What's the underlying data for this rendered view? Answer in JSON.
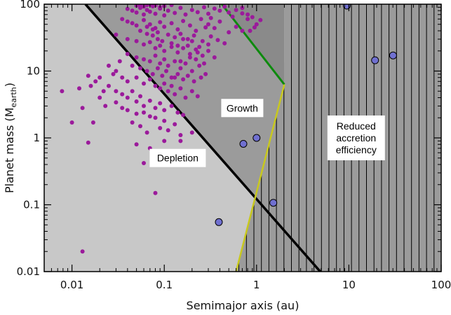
{
  "chart_data": {
    "type": "scatter",
    "title": "",
    "xlabel": "Semimajor axis (au)",
    "ylabel_main": "Planet mass (M",
    "ylabel_sub": "earth",
    "ylabel_close": ")",
    "xscale": "log",
    "yscale": "log",
    "xlim": [
      0.005,
      100
    ],
    "ylim": [
      0.01,
      100
    ],
    "xticks": [
      {
        "value": 0.01,
        "label": "0.01"
      },
      {
        "value": 0.1,
        "label": "0.1"
      },
      {
        "value": 1,
        "label": "1"
      },
      {
        "value": 10,
        "label": "10"
      },
      {
        "value": 100,
        "label": "100"
      }
    ],
    "yticks": [
      {
        "value": 0.01,
        "label": "0.01"
      },
      {
        "value": 0.1,
        "label": "0.1"
      },
      {
        "value": 1,
        "label": "1"
      },
      {
        "value": 10,
        "label": "10"
      },
      {
        "value": 100,
        "label": "100"
      }
    ],
    "colors": {
      "depletion_region": "#c8c8c8",
      "growth_region": "#9b9b9b",
      "top_region": "#8a8a8a",
      "hatch": "#000000",
      "black_line": "#000000",
      "green_line": "#0d8a0d",
      "yellow_line": "#c8c81e",
      "exoplanet": "#9b1a9b",
      "solar_system": "#7070d0"
    },
    "lines": {
      "depletion_boundary": [
        [
          0.014,
          100
        ],
        [
          4.9,
          0.01
        ]
      ],
      "green_limit": [
        [
          0.42,
          100
        ],
        [
          2.0,
          6.3
        ]
      ],
      "yellow_limit": [
        [
          0.6,
          0.01
        ],
        [
          2.0,
          6.3
        ]
      ]
    },
    "regions": [
      {
        "name": "Depletion",
        "label": "Depletion",
        "at": [
          0.14,
          0.5
        ]
      },
      {
        "name": "Growth",
        "label": "Growth",
        "at": [
          0.7,
          2.8
        ]
      },
      {
        "name": "Reduced accretion efficiency",
        "label_lines": [
          "Reduced",
          "accretion",
          "efficiency"
        ],
        "at": [
          12,
          1.0
        ]
      }
    ],
    "series": [
      {
        "kind": "exoplanets",
        "points": [
          [
            0.05,
            95
          ],
          [
            0.055,
            98
          ],
          [
            0.06,
            92
          ],
          [
            0.065,
            97
          ],
          [
            0.07,
            99
          ],
          [
            0.075,
            93
          ],
          [
            0.08,
            96
          ],
          [
            0.09,
            90
          ],
          [
            0.1,
            94
          ],
          [
            0.12,
            97
          ],
          [
            0.04,
            85
          ],
          [
            0.045,
            80
          ],
          [
            0.05,
            75
          ],
          [
            0.055,
            88
          ],
          [
            0.06,
            70
          ],
          [
            0.065,
            82
          ],
          [
            0.07,
            77
          ],
          [
            0.08,
            72
          ],
          [
            0.09,
            86
          ],
          [
            0.1,
            68
          ],
          [
            0.11,
            80
          ],
          [
            0.13,
            74
          ],
          [
            0.15,
            88
          ],
          [
            0.17,
            70
          ],
          [
            0.2,
            82
          ],
          [
            0.23,
            76
          ],
          [
            0.27,
            90
          ],
          [
            0.3,
            72
          ],
          [
            0.35,
            86
          ],
          [
            0.4,
            80
          ],
          [
            0.45,
            92
          ],
          [
            0.5,
            75
          ],
          [
            0.6,
            82
          ],
          [
            0.7,
            88
          ],
          [
            0.8,
            70
          ],
          [
            0.9,
            64
          ],
          [
            1.0,
            50
          ],
          [
            1.1,
            58
          ],
          [
            0.85,
            40
          ],
          [
            0.95,
            45
          ],
          [
            0.035,
            60
          ],
          [
            0.04,
            55
          ],
          [
            0.045,
            52
          ],
          [
            0.05,
            48
          ],
          [
            0.06,
            58
          ],
          [
            0.07,
            50
          ],
          [
            0.08,
            44
          ],
          [
            0.09,
            54
          ],
          [
            0.1,
            46
          ],
          [
            0.12,
            52
          ],
          [
            0.14,
            42
          ],
          [
            0.16,
            56
          ],
          [
            0.19,
            48
          ],
          [
            0.22,
            40
          ],
          [
            0.25,
            60
          ],
          [
            0.3,
            50
          ],
          [
            0.35,
            44
          ],
          [
            0.4,
            55
          ],
          [
            0.5,
            38
          ],
          [
            0.6,
            46
          ],
          [
            0.7,
            40
          ],
          [
            0.055,
            40
          ],
          [
            0.065,
            36
          ],
          [
            0.075,
            34
          ],
          [
            0.085,
            38
          ],
          [
            0.11,
            35
          ],
          [
            0.13,
            32
          ],
          [
            0.15,
            36
          ],
          [
            0.18,
            30
          ],
          [
            0.21,
            34
          ],
          [
            0.26,
            28
          ],
          [
            0.32,
            33
          ],
          [
            0.38,
            29
          ],
          [
            0.45,
            26
          ],
          [
            0.03,
            35
          ],
          [
            0.04,
            30
          ],
          [
            0.05,
            28
          ],
          [
            0.06,
            25
          ],
          [
            0.07,
            27
          ],
          [
            0.08,
            22
          ],
          [
            0.09,
            24
          ],
          [
            0.1,
            20
          ],
          [
            0.12,
            23
          ],
          [
            0.14,
            19
          ],
          [
            0.16,
            22
          ],
          [
            0.19,
            18
          ],
          [
            0.22,
            21
          ],
          [
            0.26,
            17
          ],
          [
            0.3,
            20
          ],
          [
            0.35,
            16
          ],
          [
            0.04,
            18
          ],
          [
            0.05,
            16
          ],
          [
            0.06,
            15
          ],
          [
            0.07,
            14
          ],
          [
            0.08,
            17
          ],
          [
            0.09,
            13
          ],
          [
            0.1,
            15
          ],
          [
            0.11,
            12
          ],
          [
            0.13,
            14
          ],
          [
            0.15,
            11
          ],
          [
            0.17,
            13
          ],
          [
            0.2,
            10
          ],
          [
            0.24,
            12
          ],
          [
            0.28,
            9
          ],
          [
            0.033,
            14
          ],
          [
            0.045,
            12
          ],
          [
            0.055,
            11
          ],
          [
            0.065,
            10
          ],
          [
            0.075,
            9
          ],
          [
            0.085,
            11
          ],
          [
            0.095,
            8.5
          ],
          [
            0.105,
            10
          ],
          [
            0.12,
            8
          ],
          [
            0.14,
            9
          ],
          [
            0.16,
            7.5
          ],
          [
            0.18,
            8.5
          ],
          [
            0.21,
            7
          ],
          [
            0.25,
            8
          ],
          [
            0.03,
            10
          ],
          [
            0.035,
            8
          ],
          [
            0.04,
            7
          ],
          [
            0.05,
            8
          ],
          [
            0.06,
            6.5
          ],
          [
            0.07,
            7.5
          ],
          [
            0.08,
            6
          ],
          [
            0.09,
            5.5
          ],
          [
            0.1,
            6.5
          ],
          [
            0.11,
            5
          ],
          [
            0.12,
            6
          ],
          [
            0.13,
            4.5
          ],
          [
            0.15,
            5.5
          ],
          [
            0.17,
            4
          ],
          [
            0.2,
            5
          ],
          [
            0.23,
            4.2
          ],
          [
            0.025,
            6
          ],
          [
            0.03,
            5
          ],
          [
            0.035,
            4.5
          ],
          [
            0.04,
            4
          ],
          [
            0.045,
            5
          ],
          [
            0.05,
            3.5
          ],
          [
            0.055,
            4.2
          ],
          [
            0.06,
            3
          ],
          [
            0.07,
            3.6
          ],
          [
            0.08,
            2.8
          ],
          [
            0.09,
            3.3
          ],
          [
            0.1,
            2.6
          ],
          [
            0.12,
            3
          ],
          [
            0.14,
            2.4
          ],
          [
            0.16,
            2.2
          ],
          [
            0.06,
            2.4
          ],
          [
            0.07,
            2.1
          ],
          [
            0.04,
            2.6
          ],
          [
            0.05,
            2.3
          ],
          [
            0.08,
            2
          ],
          [
            0.1,
            1.8
          ],
          [
            0.13,
            1.6
          ],
          [
            0.045,
            1.7
          ],
          [
            0.055,
            1.5
          ],
          [
            0.11,
            1.3
          ],
          [
            0.065,
            1.2
          ],
          [
            0.09,
            1.4
          ],
          [
            0.15,
            1.1
          ],
          [
            0.2,
            1.2
          ],
          [
            0.1,
            0.9
          ],
          [
            0.05,
            0.8
          ],
          [
            0.07,
            0.7
          ],
          [
            0.12,
            0.55
          ],
          [
            0.15,
            0.9
          ],
          [
            0.13,
            8
          ],
          [
            0.15,
            14
          ],
          [
            0.19,
            16
          ],
          [
            0.23,
            19
          ],
          [
            0.27,
            13
          ],
          [
            0.22,
            15
          ],
          [
            0.3,
            25
          ],
          [
            0.55,
            65
          ],
          [
            0.28,
            45
          ],
          [
            0.32,
            62
          ],
          [
            0.18,
            24
          ],
          [
            0.2,
            28
          ],
          [
            0.24,
            23
          ],
          [
            0.12,
            26
          ],
          [
            0.16,
            30
          ],
          [
            0.14,
            24
          ],
          [
            0.085,
            30
          ],
          [
            0.095,
            28
          ],
          [
            0.075,
            42
          ],
          [
            0.065,
            46
          ],
          [
            0.025,
            12
          ],
          [
            0.028,
            9
          ],
          [
            0.02,
            8
          ],
          [
            0.018,
            7
          ],
          [
            0.016,
            6
          ],
          [
            0.022,
            5
          ],
          [
            0.02,
            4
          ],
          [
            0.023,
            3
          ],
          [
            0.03,
            3.4
          ],
          [
            0.035,
            2.8
          ],
          [
            0.015,
            8.5
          ],
          [
            0.012,
            5.5
          ],
          [
            0.0078,
            5
          ],
          [
            0.013,
            2.8
          ],
          [
            0.01,
            1.7
          ],
          [
            0.017,
            1.7
          ],
          [
            0.015,
            0.85
          ],
          [
            0.06,
            0.42
          ],
          [
            0.08,
            0.15
          ],
          [
            0.013,
            0.02
          ],
          [
            0.8,
            60
          ],
          [
            0.7,
            73
          ]
        ]
      },
      {
        "kind": "solar_system",
        "points": [
          [
            0.39,
            0.055
          ],
          [
            0.72,
            0.815
          ],
          [
            1.0,
            1.0
          ],
          [
            1.52,
            0.107
          ],
          [
            9.5,
            95.2
          ],
          [
            19.2,
            14.5
          ],
          [
            30.1,
            17.1
          ]
        ]
      }
    ]
  }
}
